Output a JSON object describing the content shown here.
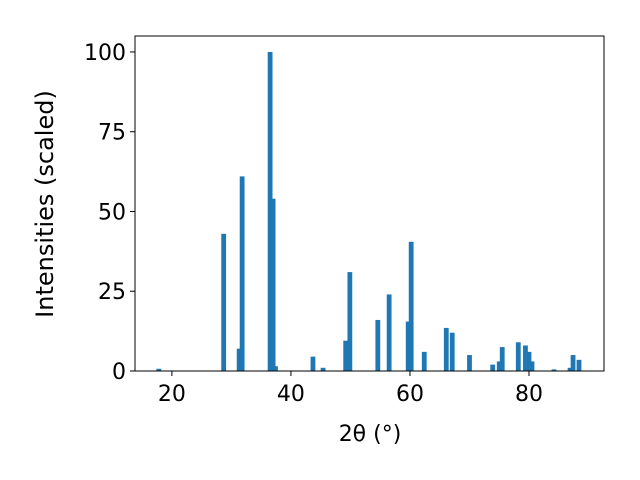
{
  "chart_data": {
    "type": "bar",
    "xlabel": "2θ (°)",
    "ylabel": "Intensities (scaled)",
    "x": [
      17.8,
      28.7,
      31.3,
      31.8,
      36.5,
      37.0,
      37.4,
      43.7,
      45.4,
      49.2,
      49.9,
      54.6,
      56.5,
      59.7,
      60.2,
      62.4,
      66.1,
      67.1,
      70.0,
      73.9,
      75.0,
      75.5,
      78.2,
      79.4,
      80.0,
      80.5,
      84.2,
      86.9,
      87.4,
      88.4
    ],
    "values": [
      0.7,
      43,
      7,
      61,
      100,
      54,
      1.5,
      4.5,
      1,
      9.5,
      31,
      16,
      24,
      15.5,
      40.5,
      6,
      13.5,
      12,
      5,
      2,
      3,
      7.5,
      9,
      8,
      6,
      3,
      0.5,
      1,
      5,
      3.5
    ],
    "color": "#1f77b4",
    "xlim": [
      13.8,
      92.6
    ],
    "xticks": [
      20,
      40,
      60,
      80
    ],
    "ylim": [
      0,
      105
    ],
    "yticks": [
      0,
      25,
      50,
      75,
      100
    ]
  }
}
